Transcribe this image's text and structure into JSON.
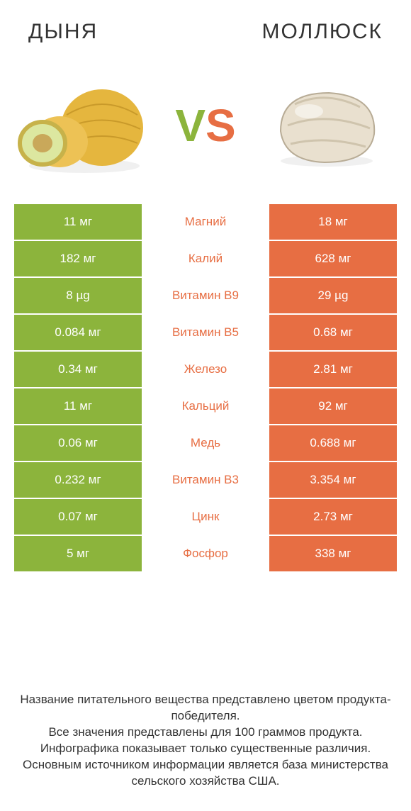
{
  "colors": {
    "left": "#8cb43c",
    "right": "#e76e43",
    "page_bg": "#ffffff",
    "text": "#333333",
    "white": "#ffffff"
  },
  "header": {
    "left_title": "ДЫНЯ",
    "right_title": "МОЛЛЮСК"
  },
  "hero": {
    "vs_v": "V",
    "vs_s": "S",
    "left_alt": "melon-image",
    "right_alt": "clam-image"
  },
  "table": {
    "type": "comparison-table",
    "rows": [
      {
        "left": "11 мг",
        "label": "Магний",
        "right": "18 мг",
        "winner": "right"
      },
      {
        "left": "182 мг",
        "label": "Калий",
        "right": "628 мг",
        "winner": "right"
      },
      {
        "left": "8 µg",
        "label": "Витамин B9",
        "right": "29 µg",
        "winner": "right"
      },
      {
        "left": "0.084 мг",
        "label": "Витамин B5",
        "right": "0.68 мг",
        "winner": "right"
      },
      {
        "left": "0.34 мг",
        "label": "Железо",
        "right": "2.81 мг",
        "winner": "right"
      },
      {
        "left": "11 мг",
        "label": "Кальций",
        "right": "92 мг",
        "winner": "right"
      },
      {
        "left": "0.06 мг",
        "label": "Медь",
        "right": "0.688 мг",
        "winner": "right"
      },
      {
        "left": "0.232 мг",
        "label": "Витамин B3",
        "right": "3.354 мг",
        "winner": "right"
      },
      {
        "left": "0.07 мг",
        "label": "Цинк",
        "right": "2.73 мг",
        "winner": "right"
      },
      {
        "left": "5 мг",
        "label": "Фосфор",
        "right": "338 мг",
        "winner": "right"
      }
    ]
  },
  "footer": {
    "line1": "Название питательного вещества представлено цветом продукта-победителя.",
    "line2": "Все значения представлены для 100 граммов продукта.",
    "line3": "Инфографика показывает только существенные различия.",
    "line4": "Основным источником информации является база министерства сельского хозяйства США."
  }
}
